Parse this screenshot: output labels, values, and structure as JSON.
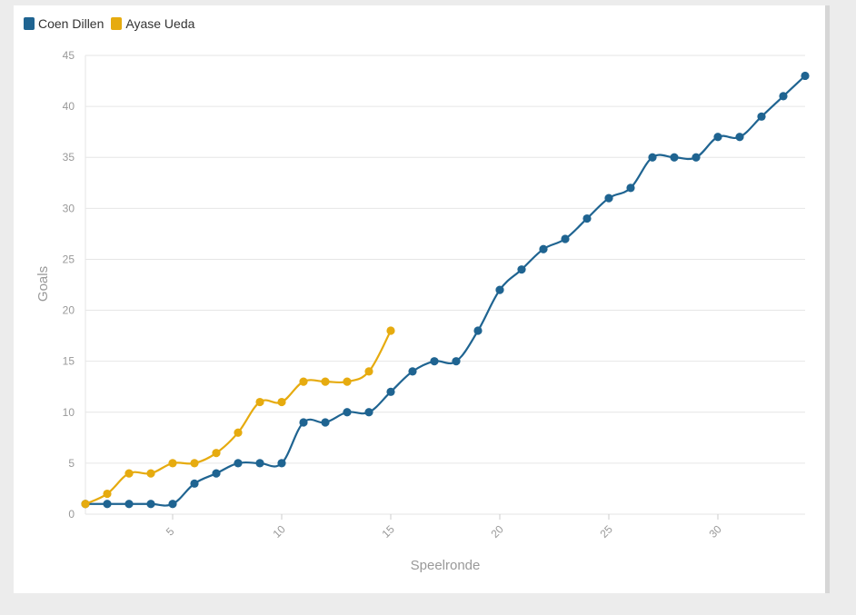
{
  "chart_data": {
    "type": "line",
    "xlabel": "Speelronde",
    "ylabel": "Goals",
    "xlim": [
      1,
      34
    ],
    "ylim": [
      0,
      45
    ],
    "xticks": [
      5,
      10,
      15,
      20,
      25,
      30
    ],
    "yticks": [
      0,
      5,
      10,
      15,
      20,
      25,
      30,
      35,
      40,
      45
    ],
    "grid": true,
    "legend_position": "top-left",
    "series": [
      {
        "name": "Coen Dillen",
        "color": "#1f6491",
        "x": [
          1,
          2,
          3,
          4,
          5,
          6,
          7,
          8,
          9,
          10,
          11,
          12,
          13,
          14,
          15,
          16,
          17,
          18,
          19,
          20,
          21,
          22,
          23,
          24,
          25,
          26,
          27,
          28,
          29,
          30,
          31,
          32,
          33,
          34
        ],
        "values": [
          1,
          1,
          1,
          1,
          1,
          3,
          4,
          5,
          5,
          5,
          9,
          9,
          10,
          10,
          12,
          14,
          15,
          15,
          18,
          22,
          24,
          26,
          27,
          29,
          31,
          32,
          35,
          35,
          35,
          37,
          37,
          39,
          41,
          43
        ]
      },
      {
        "name": "Ayase Ueda",
        "color": "#e6ab0f",
        "x": [
          1,
          2,
          3,
          4,
          5,
          6,
          7,
          8,
          9,
          10,
          11,
          12,
          13,
          14,
          15
        ],
        "values": [
          1,
          2,
          4,
          4,
          5,
          5,
          6,
          8,
          11,
          11,
          13,
          13,
          13,
          14,
          18
        ]
      }
    ]
  }
}
